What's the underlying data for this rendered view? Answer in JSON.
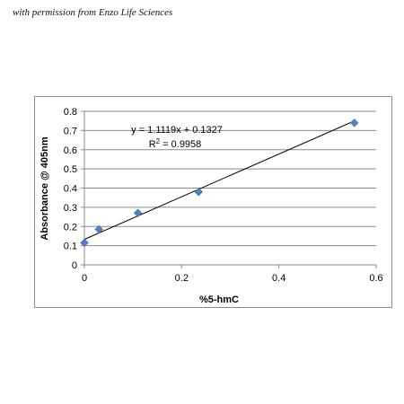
{
  "credit": "with permission from Enzo Life Sciences",
  "chart_data": {
    "type": "scatter",
    "title": "",
    "xlabel": "%5-hmC",
    "ylabel": "Absorbance @ 405nm",
    "xlim": [
      0,
      0.6
    ],
    "ylim": [
      0,
      0.8
    ],
    "x_ticks": [
      "0",
      "0.2",
      "0.4",
      "0.6"
    ],
    "y_ticks": [
      "0",
      "0.1",
      "0.2",
      "0.3",
      "0.4",
      "0.5",
      "0.6",
      "0.7",
      "0.8"
    ],
    "x_tick_values": [
      0,
      0.2,
      0.4,
      0.6
    ],
    "y_tick_values": [
      0,
      0.1,
      0.2,
      0.3,
      0.4,
      0.5,
      0.6,
      0.7,
      0.8
    ],
    "grid": "horizontal",
    "legend": "none",
    "series": [
      {
        "x": [
          0,
          0.03,
          0.11,
          0.235,
          0.555
        ],
        "y": [
          0.115,
          0.185,
          0.27,
          0.38,
          0.74
        ],
        "marker": "diamond",
        "color": "#4f81bd"
      }
    ],
    "trendline": {
      "slope": 1.1119,
      "intercept": 0.1327,
      "x_range": [
        0,
        0.555
      ],
      "color": "#000000"
    },
    "annotations": {
      "equation": "y = 1.1119x + 0.1327",
      "r2_label": "R",
      "r2_sup": "2",
      "r2_value": " = 0.9958"
    }
  }
}
